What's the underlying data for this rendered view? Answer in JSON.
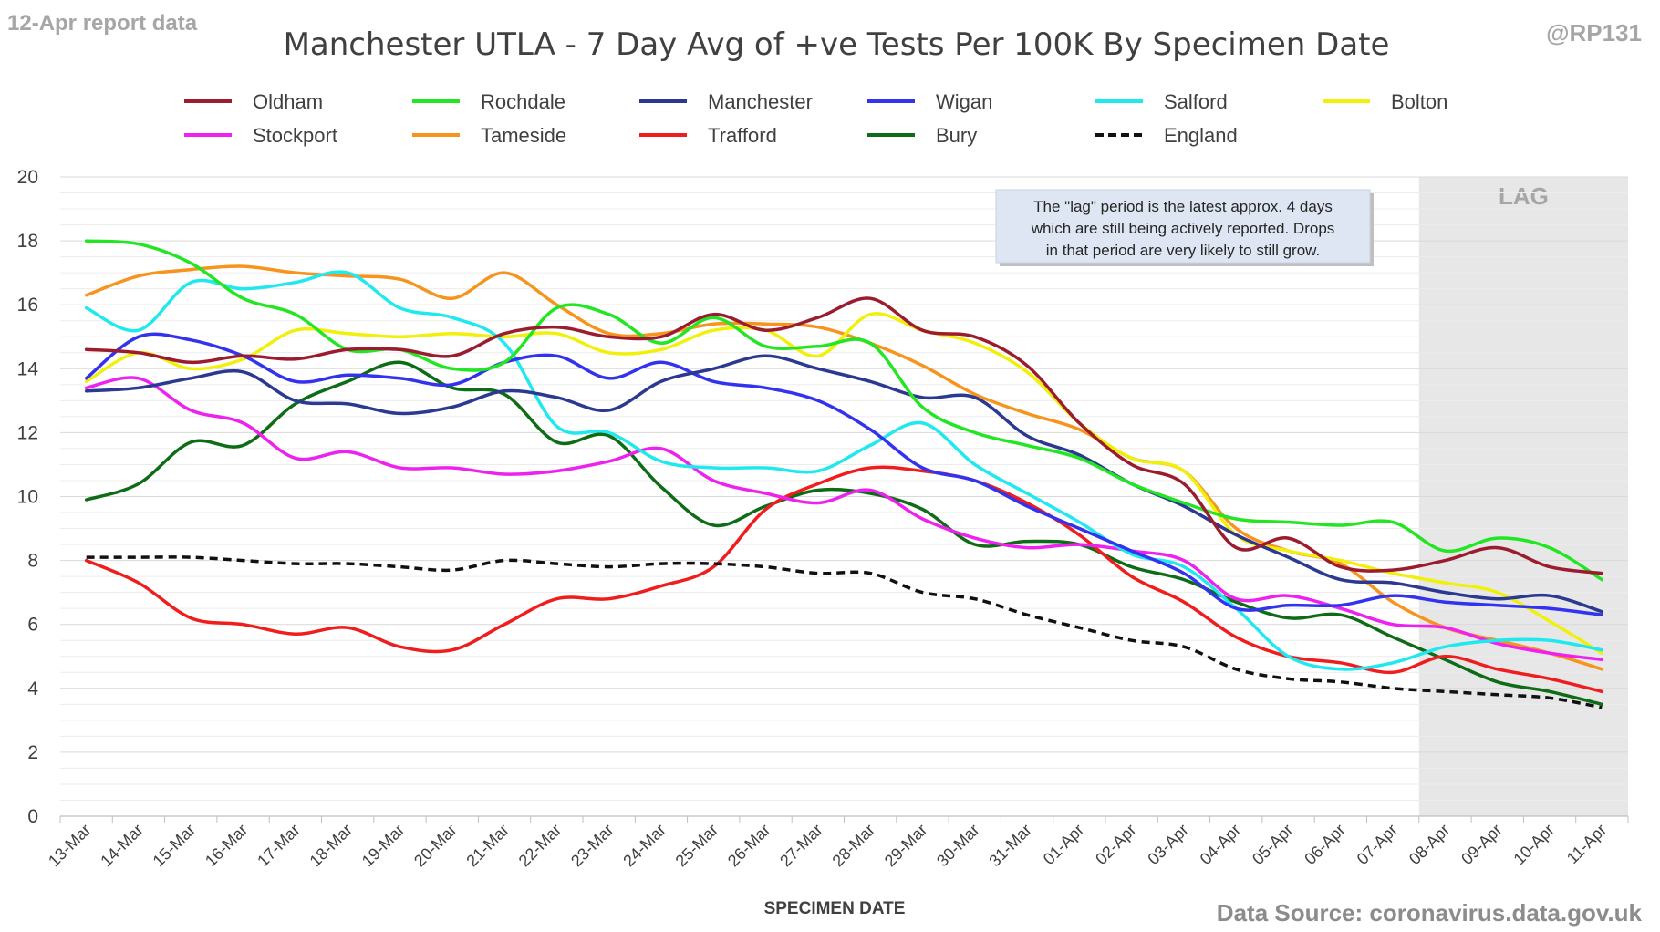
{
  "header": {
    "report_label": "12-Apr report data",
    "handle": "@RP131",
    "source": "Data Source: coronavirus.data.gov.uk"
  },
  "annotation": {
    "lines": [
      "The \"lag\" period is the latest approx. 4 days",
      "which are still being actively reported.  Drops",
      "in that period are very likely to still grow."
    ]
  },
  "chart_data": {
    "type": "line",
    "title": "Manchester UTLA - 7 Day Avg of +ve Tests Per 100K By Specimen Date",
    "xlabel": "SPECIMEN DATE",
    "ylabel": "",
    "ylim": [
      0,
      20
    ],
    "yticks": [
      0,
      2,
      4,
      6,
      8,
      10,
      12,
      14,
      16,
      18,
      20
    ],
    "grid": "horizontal",
    "legend_position": "top",
    "lag_region": {
      "label": "LAG",
      "from": "08-Apr",
      "to": "11-Apr",
      "color": "#e7e7e7"
    },
    "categories": [
      "13-Mar",
      "14-Mar",
      "15-Mar",
      "16-Mar",
      "17-Mar",
      "18-Mar",
      "19-Mar",
      "20-Mar",
      "21-Mar",
      "22-Mar",
      "23-Mar",
      "24-Mar",
      "25-Mar",
      "26-Mar",
      "27-Mar",
      "28-Mar",
      "29-Mar",
      "30-Mar",
      "31-Mar",
      "01-Apr",
      "02-Apr",
      "03-Apr",
      "04-Apr",
      "05-Apr",
      "06-Apr",
      "07-Apr",
      "08-Apr",
      "09-Apr",
      "10-Apr",
      "11-Apr"
    ],
    "series": [
      {
        "name": "Oldham",
        "color": "#9b1c2e",
        "dash": "solid",
        "values": [
          14.6,
          14.5,
          14.2,
          14.4,
          14.3,
          14.6,
          14.6,
          14.4,
          15.1,
          15.3,
          15.0,
          15.0,
          15.7,
          15.2,
          15.6,
          16.2,
          15.2,
          15.0,
          14.1,
          12.3,
          11.0,
          10.4,
          8.4,
          8.7,
          7.8,
          7.7,
          8.0,
          8.4,
          7.8,
          7.6
        ]
      },
      {
        "name": "Rochdale",
        "color": "#22e622",
        "dash": "solid",
        "values": [
          18.0,
          17.9,
          17.3,
          16.2,
          15.7,
          14.6,
          14.6,
          14.0,
          14.2,
          15.9,
          15.7,
          14.8,
          15.6,
          14.7,
          14.7,
          14.8,
          12.8,
          12.0,
          11.6,
          11.2,
          10.4,
          9.8,
          9.3,
          9.2,
          9.1,
          9.2,
          8.3,
          8.7,
          8.4,
          7.4
        ]
      },
      {
        "name": "Manchester",
        "color": "#2b3990",
        "dash": "solid",
        "values": [
          13.3,
          13.4,
          13.7,
          13.9,
          13.0,
          12.9,
          12.6,
          12.8,
          13.3,
          13.1,
          12.7,
          13.6,
          14.0,
          14.4,
          14.0,
          13.6,
          13.1,
          13.1,
          11.9,
          11.3,
          10.4,
          9.7,
          8.8,
          8.1,
          7.4,
          7.3,
          7.0,
          6.8,
          6.9,
          6.4
        ]
      },
      {
        "name": "Wigan",
        "color": "#3333ee",
        "dash": "solid",
        "values": [
          13.7,
          15.0,
          14.9,
          14.4,
          13.6,
          13.8,
          13.7,
          13.5,
          14.2,
          14.4,
          13.7,
          14.2,
          13.6,
          13.4,
          13.0,
          12.1,
          10.9,
          10.5,
          9.7,
          9.0,
          8.3,
          7.6,
          6.5,
          6.6,
          6.6,
          6.9,
          6.7,
          6.6,
          6.5,
          6.3
        ]
      },
      {
        "name": "Salford",
        "color": "#1fe8ef",
        "dash": "solid",
        "values": [
          15.9,
          15.2,
          16.7,
          16.5,
          16.7,
          17.0,
          15.9,
          15.6,
          14.8,
          12.2,
          12.0,
          11.1,
          10.9,
          10.9,
          10.8,
          11.6,
          12.3,
          11.0,
          10.1,
          9.2,
          8.2,
          7.8,
          6.5,
          5.0,
          4.6,
          4.8,
          5.3,
          5.5,
          5.5,
          5.2
        ]
      },
      {
        "name": "Bolton",
        "color": "#f0f00a",
        "dash": "solid",
        "values": [
          13.6,
          14.5,
          14.0,
          14.3,
          15.2,
          15.1,
          15.0,
          15.1,
          15.0,
          15.1,
          14.5,
          14.6,
          15.2,
          15.2,
          14.4,
          15.7,
          15.2,
          14.8,
          13.9,
          12.3,
          11.2,
          10.8,
          8.8,
          8.3,
          8.0,
          7.6,
          7.3,
          7.0,
          6.1,
          5.1
        ]
      },
      {
        "name": "Stockport",
        "color": "#ee22ee",
        "dash": "solid",
        "values": [
          13.4,
          13.7,
          12.7,
          12.3,
          11.2,
          11.4,
          10.9,
          10.9,
          10.7,
          10.8,
          11.1,
          11.5,
          10.5,
          10.1,
          9.8,
          10.2,
          9.3,
          8.7,
          8.4,
          8.5,
          8.3,
          8.0,
          6.8,
          6.9,
          6.5,
          6.0,
          5.9,
          5.4,
          5.1,
          4.9
        ]
      },
      {
        "name": "Tameside",
        "color": "#f7941d",
        "dash": "solid",
        "values": [
          16.3,
          16.9,
          17.1,
          17.2,
          17.0,
          16.9,
          16.8,
          16.2,
          17.0,
          16.0,
          15.1,
          15.1,
          15.4,
          15.4,
          15.3,
          14.8,
          14.1,
          13.2,
          12.6,
          12.1,
          11.2,
          10.8,
          9.0,
          8.3,
          7.9,
          6.7,
          5.9,
          5.5,
          5.1,
          4.6
        ]
      },
      {
        "name": "Trafford",
        "color": "#ef1d1d",
        "dash": "solid",
        "values": [
          8.0,
          7.3,
          6.2,
          6.0,
          5.7,
          5.9,
          5.3,
          5.2,
          6.0,
          6.8,
          6.8,
          7.2,
          7.8,
          9.6,
          10.4,
          10.9,
          10.8,
          10.5,
          9.8,
          8.8,
          7.5,
          6.7,
          5.6,
          5.0,
          4.8,
          4.5,
          5.0,
          4.6,
          4.3,
          3.9
        ]
      },
      {
        "name": "Bury",
        "color": "#0e6b16",
        "dash": "solid",
        "values": [
          9.9,
          10.4,
          11.7,
          11.6,
          12.9,
          13.6,
          14.2,
          13.4,
          13.2,
          11.7,
          11.9,
          10.3,
          9.1,
          9.7,
          10.2,
          10.1,
          9.6,
          8.5,
          8.6,
          8.5,
          7.8,
          7.4,
          6.7,
          6.2,
          6.3,
          5.6,
          4.9,
          4.2,
          3.9,
          3.5
        ]
      },
      {
        "name": "England",
        "color": "#111111",
        "dash": "dashed",
        "values": [
          8.1,
          8.1,
          8.1,
          8.0,
          7.9,
          7.9,
          7.8,
          7.7,
          8.0,
          7.9,
          7.8,
          7.9,
          7.9,
          7.8,
          7.6,
          7.6,
          7.0,
          6.8,
          6.3,
          5.9,
          5.5,
          5.3,
          4.6,
          4.3,
          4.2,
          4.0,
          3.9,
          3.8,
          3.7,
          3.4
        ]
      }
    ]
  }
}
